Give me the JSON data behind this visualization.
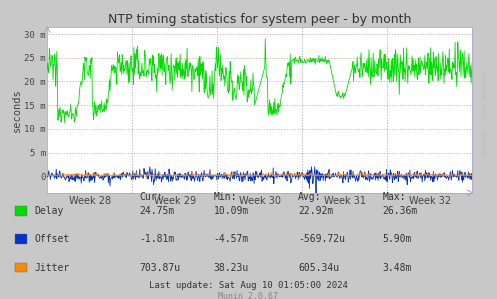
{
  "title": "NTP timing statistics for system peer - by month",
  "ylabel": "seconds",
  "background_color": "#c8c8c8",
  "plot_bg_color": "#ffffff",
  "title_color": "#333333",
  "week_labels": [
    "Week 28",
    "Week 29",
    "Week 30",
    "Week 31",
    "Week 32"
  ],
  "ytick_labels": [
    "0",
    "5 m",
    "10 m",
    "15 m",
    "20 m",
    "25 m",
    "30 m"
  ],
  "ytick_values": [
    0,
    5,
    10,
    15,
    20,
    25,
    30
  ],
  "delay_color": "#00dd00",
  "offset_color": "#0033cc",
  "jitter_color": "#ff8800",
  "ymin": -3.5,
  "ymax": 31.5,
  "xmin": 0,
  "xmax": 5,
  "legend_entries": [
    {
      "label": "Delay",
      "color": "#00dd00"
    },
    {
      "label": "Offset",
      "color": "#0033cc"
    },
    {
      "label": "Jitter",
      "color": "#ff8800"
    }
  ],
  "stats_header": [
    "Cur:",
    "Min:",
    "Avg:",
    "Max:"
  ],
  "stats_delay": [
    "24.75m",
    "10.09m",
    "22.92m",
    "26.36m"
  ],
  "stats_offset": [
    "-1.81m",
    "-4.57m",
    "-569.72u",
    "5.90m"
  ],
  "stats_jitter": [
    "703.87u",
    "38.23u",
    "605.34u",
    "3.48m"
  ],
  "last_update": "Last update: Sat Aug 10 01:05:00 2024",
  "munin_version": "Munin 2.0.67",
  "rrdtool_label": "RRDTOOL / TOBI OETIKER",
  "hgrid_color": "#cc9999",
  "vgrid_color": "#9999cc"
}
